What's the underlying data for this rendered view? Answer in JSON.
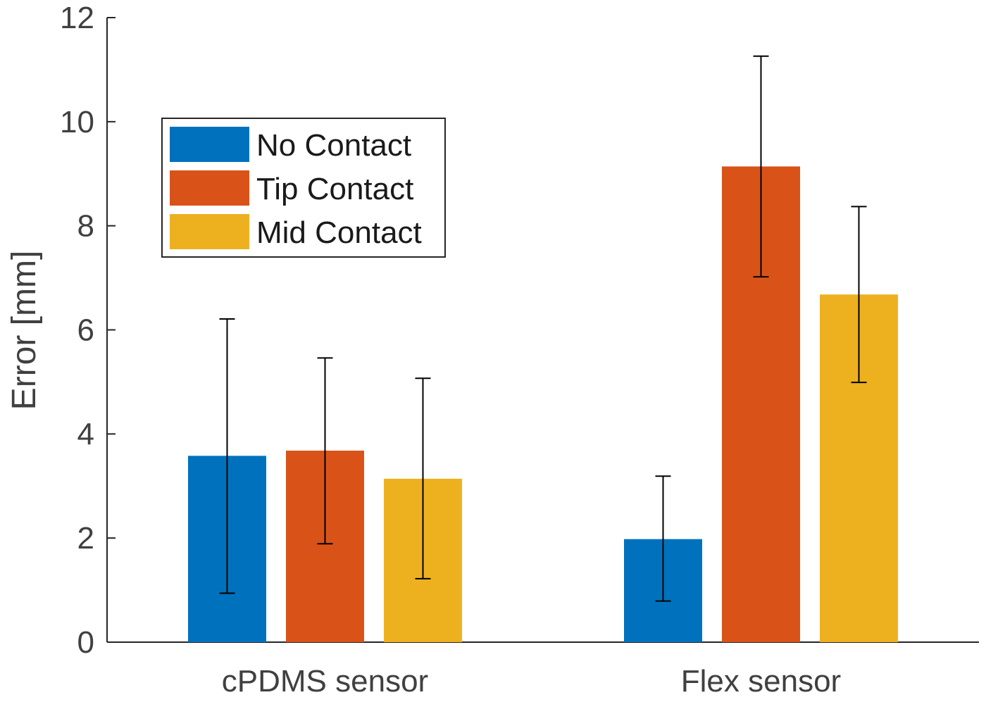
{
  "chart_data": {
    "type": "bar",
    "categories": [
      "cPDMS sensor",
      "Flex sensor"
    ],
    "ylabel": "Error [mm]",
    "xlabel": "",
    "ylim": [
      0,
      12
    ],
    "yticks": [
      "0",
      "2",
      "4",
      "6",
      "8",
      "10",
      "12"
    ],
    "grid": false,
    "legend_position": "top-left",
    "series": [
      {
        "name": "No Contact",
        "color": "#0072BD",
        "values": [
          3.58,
          1.98
        ],
        "err_low": [
          0.94,
          0.79
        ],
        "err_high": [
          6.21,
          3.19
        ]
      },
      {
        "name": "Tip Contact",
        "color": "#D95319",
        "values": [
          3.68,
          9.14
        ],
        "err_low": [
          1.89,
          7.02
        ],
        "err_high": [
          5.46,
          11.26
        ]
      },
      {
        "name": "Mid Contact",
        "color": "#EDB120",
        "values": [
          3.14,
          6.68
        ],
        "err_low": [
          1.22,
          4.99
        ],
        "err_high": [
          5.07,
          8.37
        ]
      }
    ]
  }
}
